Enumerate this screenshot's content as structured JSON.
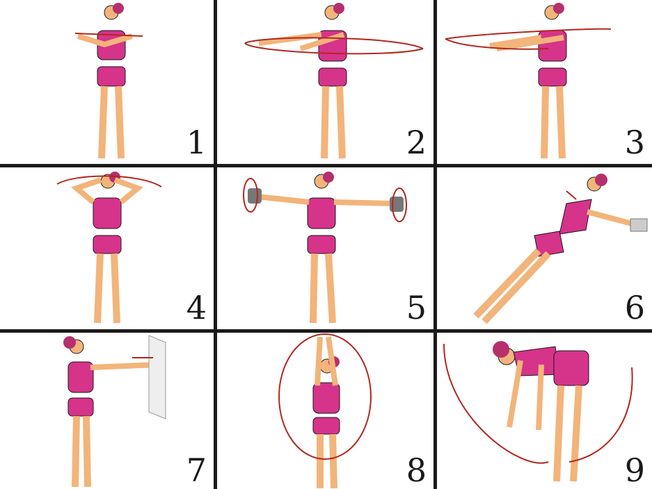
{
  "panels": [
    {
      "number": "1",
      "pose": "arms-crossed-chest"
    },
    {
      "number": "2",
      "pose": "arm-circles-forward"
    },
    {
      "number": "3",
      "pose": "arms-swing-forward"
    },
    {
      "number": "4",
      "pose": "hands-behind-head"
    },
    {
      "number": "5",
      "pose": "dumbbell-lateral-raise"
    },
    {
      "number": "6",
      "pose": "incline-push-up"
    },
    {
      "number": "7",
      "pose": "wall-push"
    },
    {
      "number": "8",
      "pose": "overhead-arm-circles"
    },
    {
      "number": "9",
      "pose": "bent-over-arm-swing"
    }
  ],
  "colors": {
    "skin": "#f2b47a",
    "outfit": "#d6338a",
    "hair": "#b5306d",
    "arrow": "#b3261e",
    "line": "#1a1a1a",
    "accent": "#ffffff"
  }
}
